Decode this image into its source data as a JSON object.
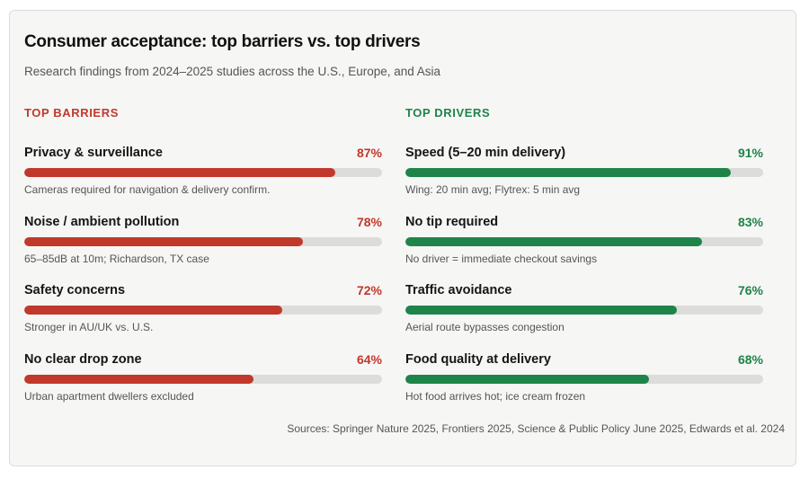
{
  "header": {
    "title": "Consumer acceptance: top barriers vs. top drivers",
    "subtitle": "Research findings from 2024–2025 studies across the U.S., Europe, and Asia"
  },
  "chart_data": [
    {
      "type": "bar",
      "orientation": "horizontal",
      "title": "TOP BARRIERS",
      "color": "#c0392b",
      "unit": "%",
      "xlim": [
        0,
        100
      ],
      "categories": [
        "Privacy & surveillance",
        "Noise / ambient pollution",
        "Safety concerns",
        "No clear drop zone"
      ],
      "values": [
        87,
        78,
        72,
        64
      ],
      "value_labels": [
        "87%",
        "78%",
        "72%",
        "64%"
      ],
      "notes": [
        "Cameras required for navigation & delivery confirm.",
        "65–85dB at 10m; Richardson, TX case",
        "Stronger in AU/UK vs. U.S.",
        "Urban apartment dwellers excluded"
      ]
    },
    {
      "type": "bar",
      "orientation": "horizontal",
      "title": "TOP DRIVERS",
      "color": "#1e8449",
      "unit": "%",
      "xlim": [
        0,
        100
      ],
      "categories": [
        "Speed (5–20 min delivery)",
        "No tip required",
        "Traffic avoidance",
        "Food quality at delivery"
      ],
      "values": [
        91,
        83,
        76,
        68
      ],
      "value_labels": [
        "91%",
        "83%",
        "76%",
        "68%"
      ],
      "notes": [
        "Wing: 20 min avg; Flytrex: 5 min avg",
        "No driver = immediate checkout savings",
        "Aerial route bypasses congestion",
        "Hot food arrives hot; ice cream frozen"
      ]
    }
  ],
  "colors": {
    "barrier": "#c0392b",
    "driver": "#1e8449",
    "track": "#dcdcdb"
  },
  "footer": {
    "sources": "Sources: Springer Nature 2025, Frontiers 2025, Science & Public Policy June 2025, Edwards et al. 2024"
  }
}
